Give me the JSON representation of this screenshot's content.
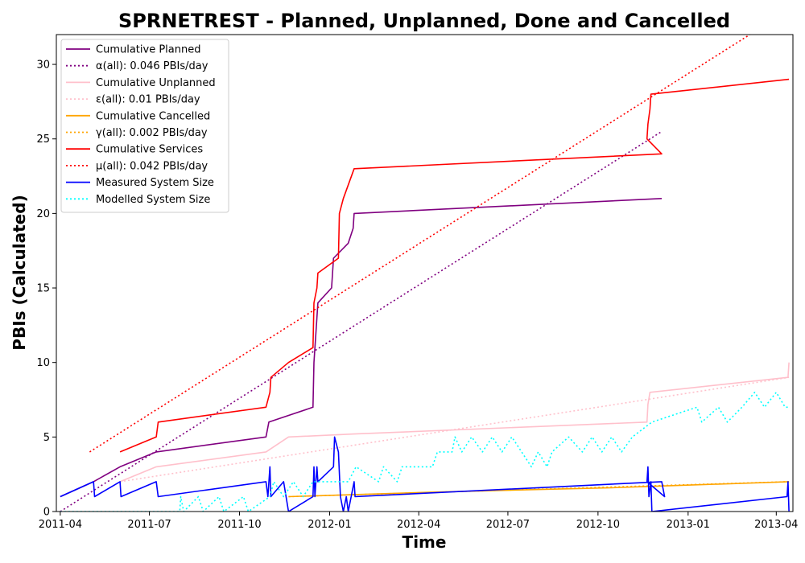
{
  "chart_data": {
    "type": "line",
    "title": "SPRNETREST - Planned, Unplanned, Done  and Cancelled",
    "xlabel": "Time",
    "ylabel": "PBIs (Calculated)",
    "xlim": [
      "2011-03-28",
      "2013-04-18"
    ],
    "ylim": [
      0,
      32
    ],
    "x_ticks": [
      "2011-04",
      "2011-07",
      "2011-10",
      "2012-01",
      "2012-04",
      "2012-07",
      "2012-10",
      "2013-01",
      "2013-04"
    ],
    "y_ticks": [
      "0",
      "5",
      "10",
      "15",
      "20",
      "25",
      "30"
    ],
    "grid": false,
    "legend_position": "top-left",
    "series": [
      {
        "name": "Cumulative Planned",
        "color": "#800080",
        "style": "solid",
        "points": [
          [
            "2011-04-01",
            1
          ],
          [
            "2011-05-05",
            2
          ],
          [
            "2011-06-01",
            3
          ],
          [
            "2011-07-08",
            4
          ],
          [
            "2011-10-28",
            5
          ],
          [
            "2011-10-31",
            6
          ],
          [
            "2011-12-15",
            7
          ],
          [
            "2011-12-16",
            10
          ],
          [
            "2011-12-20",
            14
          ],
          [
            "2012-01-03",
            15
          ],
          [
            "2012-01-05",
            17
          ],
          [
            "2012-01-20",
            18
          ],
          [
            "2012-01-25",
            19
          ],
          [
            "2012-01-26",
            20
          ],
          [
            "2012-12-05",
            21
          ]
        ]
      },
      {
        "name": "α(all): 0.046 PBIs/day",
        "color": "#800080",
        "style": "dotted",
        "points": [
          [
            "2011-04-01",
            0
          ],
          [
            "2012-12-05",
            25.5
          ]
        ]
      },
      {
        "name": "Cumulative Unplanned",
        "color": "#ffc0cb",
        "style": "solid",
        "points": [
          [
            "2011-06-01",
            2
          ],
          [
            "2011-07-08",
            3
          ],
          [
            "2011-10-28",
            4
          ],
          [
            "2011-11-20",
            5
          ],
          [
            "2012-01-26",
            5.2
          ],
          [
            "2012-11-20",
            6
          ],
          [
            "2012-11-21",
            7.2
          ],
          [
            "2012-11-23",
            8
          ],
          [
            "2013-04-13",
            9
          ],
          [
            "2013-04-14",
            10
          ]
        ]
      },
      {
        "name": "ε(all): 0.01 PBIs/day",
        "color": "#ffc0cb",
        "style": "dotted",
        "points": [
          [
            "2011-06-01",
            2
          ],
          [
            "2013-04-14",
            9
          ]
        ]
      },
      {
        "name": "Cumulative Cancelled",
        "color": "#ffa500",
        "style": "solid",
        "points": [
          [
            "2011-11-20",
            1
          ],
          [
            "2012-04-15",
            1.3
          ],
          [
            "2012-10-15",
            1.6
          ],
          [
            "2013-01-15",
            1.8
          ],
          [
            "2013-04-14",
            2
          ]
        ]
      },
      {
        "name": "γ(all): 0.002 PBIs/day",
        "color": "#ffa500",
        "style": "dotted",
        "points": [
          [
            "2011-11-20",
            1
          ],
          [
            "2013-04-14",
            2
          ]
        ]
      },
      {
        "name": "Cumulative Services",
        "color": "#ff0000",
        "style": "solid",
        "points": [
          [
            "2011-06-01",
            4
          ],
          [
            "2011-07-08",
            5
          ],
          [
            "2011-07-10",
            6
          ],
          [
            "2011-10-28",
            7
          ],
          [
            "2011-11-01",
            8
          ],
          [
            "2011-11-02",
            9
          ],
          [
            "2011-11-20",
            10
          ],
          [
            "2011-12-15",
            11
          ],
          [
            "2011-12-16",
            14
          ],
          [
            "2011-12-19",
            15
          ],
          [
            "2011-12-20",
            16
          ],
          [
            "2012-01-10",
            17
          ],
          [
            "2012-01-11",
            20
          ],
          [
            "2012-01-15",
            21
          ],
          [
            "2012-01-26",
            23
          ],
          [
            "2012-12-05",
            24
          ],
          [
            "2012-11-20",
            25
          ],
          [
            "2012-11-21",
            26
          ],
          [
            "2012-11-23",
            27
          ],
          [
            "2012-11-24",
            28
          ],
          [
            "2013-04-14",
            29
          ]
        ]
      },
      {
        "name": "μ(all): 0.042 PBIs/day",
        "color": "#ff0000",
        "style": "dotted",
        "points": [
          [
            "2011-05-01",
            4
          ],
          [
            "2013-03-05",
            32
          ]
        ]
      },
      {
        "name": "Measured System Size",
        "color": "#0000ff",
        "style": "solid",
        "points": [
          [
            "2011-04-01",
            1
          ],
          [
            "2011-05-05",
            2
          ],
          [
            "2011-05-06",
            1
          ],
          [
            "2011-06-01",
            2
          ],
          [
            "2011-06-02",
            1
          ],
          [
            "2011-07-08",
            2
          ],
          [
            "2011-07-10",
            1
          ],
          [
            "2011-10-28",
            2
          ],
          [
            "2011-10-30",
            1
          ],
          [
            "2011-11-01",
            3
          ],
          [
            "2011-11-02",
            1
          ],
          [
            "2011-11-15",
            2
          ],
          [
            "2011-11-20",
            0
          ],
          [
            "2011-12-15",
            1
          ],
          [
            "2011-12-16",
            3
          ],
          [
            "2011-12-17",
            1
          ],
          [
            "2011-12-19",
            3
          ],
          [
            "2011-12-20",
            2
          ],
          [
            "2012-01-05",
            3
          ],
          [
            "2012-01-06",
            5
          ],
          [
            "2012-01-10",
            4
          ],
          [
            "2012-01-12",
            1
          ],
          [
            "2012-01-15",
            0
          ],
          [
            "2012-01-18",
            1
          ],
          [
            "2012-01-20",
            0
          ],
          [
            "2012-01-26",
            2
          ],
          [
            "2012-01-27",
            1
          ],
          [
            "2012-12-05",
            2
          ],
          [
            "2012-12-08",
            1
          ],
          [
            "2012-11-20",
            2
          ],
          [
            "2012-11-21",
            3
          ],
          [
            "2012-11-22",
            1
          ],
          [
            "2012-11-24",
            2
          ],
          [
            "2012-11-25",
            0
          ],
          [
            "2013-04-12",
            1
          ],
          [
            "2013-04-13",
            2
          ],
          [
            "2013-04-14",
            0
          ]
        ]
      },
      {
        "name": "Modelled System Size",
        "color": "#00ffff",
        "style": "dotted",
        "points": [
          [
            "2011-04-01",
            0
          ],
          [
            "2011-08-01",
            0
          ],
          [
            "2011-08-02",
            1
          ],
          [
            "2011-08-05",
            0
          ],
          [
            "2011-08-20",
            1
          ],
          [
            "2011-08-25",
            0
          ],
          [
            "2011-09-10",
            1
          ],
          [
            "2011-09-15",
            0
          ],
          [
            "2011-10-05",
            1
          ],
          [
            "2011-10-10",
            0
          ],
          [
            "2011-11-01",
            1
          ],
          [
            "2011-11-05",
            2
          ],
          [
            "2011-11-15",
            1
          ],
          [
            "2011-11-25",
            2
          ],
          [
            "2011-12-05",
            1
          ],
          [
            "2011-12-15",
            2
          ],
          [
            "2012-01-20",
            2
          ],
          [
            "2012-01-28",
            3
          ],
          [
            "2012-02-20",
            2
          ],
          [
            "2012-02-25",
            3
          ],
          [
            "2012-03-10",
            2
          ],
          [
            "2012-03-15",
            3
          ],
          [
            "2012-04-15",
            3
          ],
          [
            "2012-04-20",
            4
          ],
          [
            "2012-05-05",
            4
          ],
          [
            "2012-05-08",
            5
          ],
          [
            "2012-05-15",
            4
          ],
          [
            "2012-05-25",
            5
          ],
          [
            "2012-06-05",
            4
          ],
          [
            "2012-06-15",
            5
          ],
          [
            "2012-06-25",
            4
          ],
          [
            "2012-07-05",
            5
          ],
          [
            "2012-07-15",
            4
          ],
          [
            "2012-07-25",
            3
          ],
          [
            "2012-08-01",
            4
          ],
          [
            "2012-08-10",
            3
          ],
          [
            "2012-08-15",
            4
          ],
          [
            "2012-09-01",
            5
          ],
          [
            "2012-09-15",
            4
          ],
          [
            "2012-09-25",
            5
          ],
          [
            "2012-10-05",
            4
          ],
          [
            "2012-10-15",
            5
          ],
          [
            "2012-10-25",
            4
          ],
          [
            "2012-11-05",
            5
          ],
          [
            "2012-11-25",
            6
          ],
          [
            "2013-01-10",
            7
          ],
          [
            "2013-01-15",
            6
          ],
          [
            "2013-02-01",
            7
          ],
          [
            "2013-02-10",
            6
          ],
          [
            "2013-02-25",
            7
          ],
          [
            "2013-03-10",
            8
          ],
          [
            "2013-03-20",
            7
          ],
          [
            "2013-04-01",
            8
          ],
          [
            "2013-04-10",
            7
          ],
          [
            "2013-04-14",
            7
          ]
        ]
      }
    ]
  }
}
